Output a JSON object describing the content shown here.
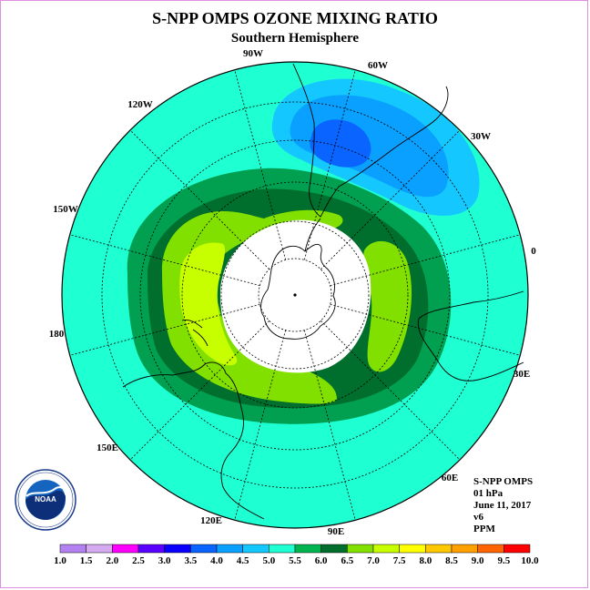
{
  "title": "S-NPP OMPS OZONE MIXING RATIO",
  "subtitle": "Southern Hemisphere",
  "longitude_labels": [
    "90W",
    "60W",
    "30W",
    "0",
    "30E",
    "60E",
    "90E",
    "120E",
    "150E",
    "180",
    "150W",
    "120W"
  ],
  "info": {
    "instrument": "S-NPP OMPS",
    "level": "01 hPa",
    "date": "June 11, 2017",
    "version": "v6",
    "units": "PPM"
  },
  "logo": {
    "text": "NOAA",
    "ring_text": "NATIONAL OCEANIC AND ATMOSPHERIC ADMINISTRATION · U.S. DEPARTMENT OF COMMERCE"
  },
  "colorbar": {
    "labels": [
      "1.0",
      "1.5",
      "2.0",
      "2.5",
      "3.0",
      "3.5",
      "4.0",
      "4.5",
      "5.0",
      "5.5",
      "6.0",
      "6.5",
      "7.0",
      "7.5",
      "8.0",
      "8.5",
      "9.0",
      "9.5",
      "10.0"
    ],
    "colors": [
      "#b482f0",
      "#d6aaf0",
      "#ff00ff",
      "#5a00ff",
      "#0a00ff",
      "#0a64ff",
      "#0aa0ff",
      "#14c8ff",
      "#1effd2",
      "#00b450",
      "#006e2c",
      "#82e000",
      "#c8ff00",
      "#ffff00",
      "#ffc800",
      "#ffa000",
      "#ff6400",
      "#ff0000",
      "#8c4628"
    ]
  },
  "map_colors": {
    "background": "#1effd2",
    "level_4_5": "#14c8ff",
    "level_4_0": "#0aa0ff",
    "level_3_5": "#0a64ff",
    "level_5_5": "#00a050",
    "level_6_0": "#006e2c",
    "level_6_5": "#82e000",
    "level_7_0": "#c8ff00",
    "polar_night": "#ffffff"
  }
}
